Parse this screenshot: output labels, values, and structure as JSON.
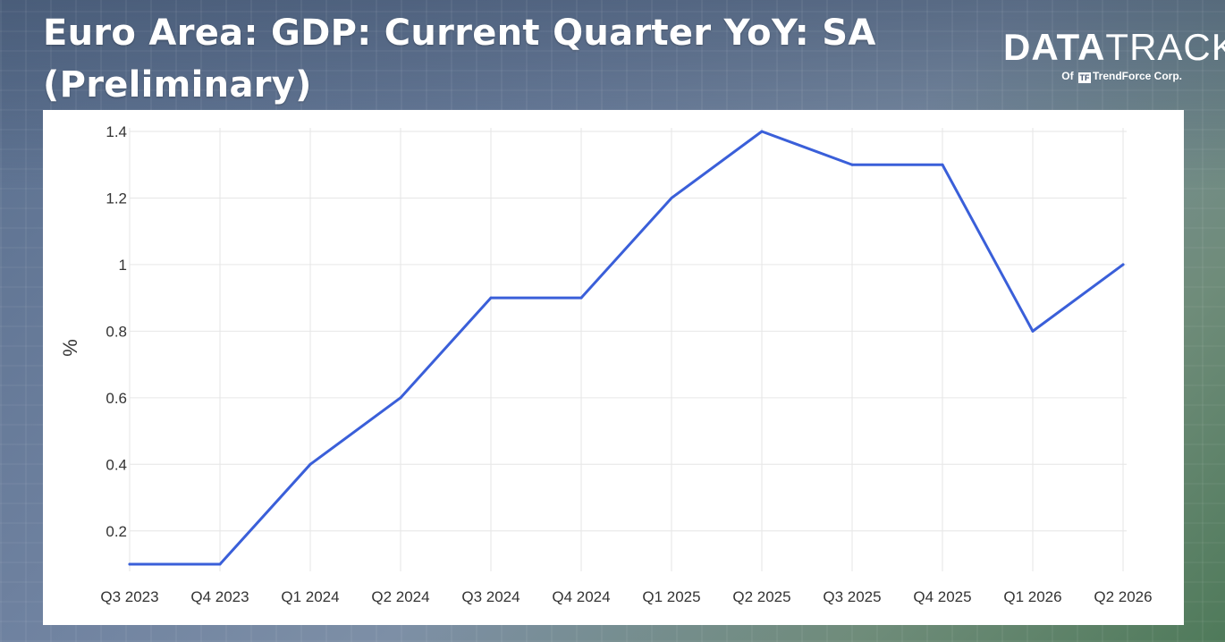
{
  "header": {
    "title": "Euro Area: GDP: Current Quarter YoY: SA (Preliminary)"
  },
  "logo": {
    "main_bold": "DATA",
    "main_thin": "TRACK",
    "sub_prefix": "Of",
    "sub_mark": "TF",
    "sub_company": "TrendForce Corp."
  },
  "colors": {
    "line": "#3a5fd9",
    "grid": "#e6e6e6",
    "panel": "#ffffff"
  },
  "chart_data": {
    "type": "line",
    "title": "Euro Area: GDP: Current Quarter YoY: SA (Preliminary)",
    "xlabel": "",
    "ylabel": "%",
    "categories": [
      "Q3 2023",
      "Q4 2023",
      "Q1 2024",
      "Q2 2024",
      "Q3 2024",
      "Q4 2024",
      "Q1 2025",
      "Q2 2025",
      "Q3 2025",
      "Q4 2025",
      "Q1 2026",
      "Q2 2026"
    ],
    "series": [
      {
        "values": [
          0.1,
          0.1,
          0.4,
          0.6,
          0.9,
          0.9,
          1.2,
          1.4,
          1.3,
          1.3,
          0.8,
          1.0
        ]
      }
    ],
    "y_ticks": [
      0.2,
      0.4,
      0.6,
      0.8,
      1,
      1.2,
      1.4
    ],
    "y_tick_labels": [
      "0.2",
      "0.4",
      "0.6",
      "0.8",
      "1",
      "1.2",
      "1.4"
    ],
    "ylim": [
      0.1,
      1.4
    ],
    "grid": true,
    "legend": "none"
  }
}
